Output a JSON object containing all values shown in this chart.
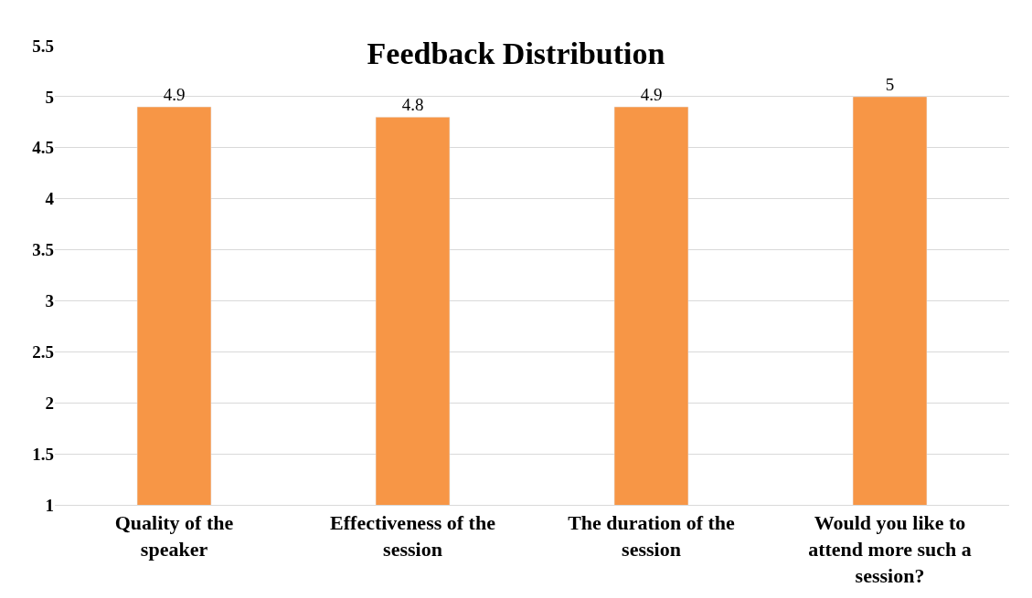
{
  "chart_data": {
    "type": "bar",
    "title": "Feedback Distribution",
    "categories": [
      "Quality of the speaker",
      "Effectiveness of the session",
      "The duration of the session",
      "Would you like to attend more such a session?"
    ],
    "values": [
      4.9,
      4.8,
      4.9,
      5
    ],
    "color": "#f79646",
    "ylim": [
      1,
      5.5
    ],
    "yticks": [
      1,
      1.5,
      2,
      2.5,
      3,
      3.5,
      4,
      4.5,
      5,
      5.5
    ],
    "grid": "y",
    "data_labels": true
  }
}
